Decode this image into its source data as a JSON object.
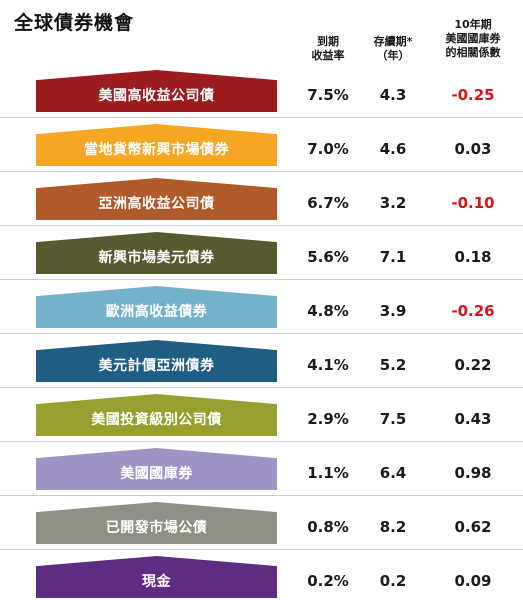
{
  "title": "全球債券機會",
  "headers": {
    "yield": [
      "到期",
      "收益率"
    ],
    "duration": [
      "存續期*",
      "（年）"
    ],
    "correlation": [
      "10年期",
      "美國國庫券",
      "的相關係數"
    ]
  },
  "chart_data": {
    "type": "table",
    "title": "全球債券機會",
    "columns": [
      "到期收益率",
      "存續期*（年）",
      "10年期美國國庫券的相關係數"
    ],
    "rows": [
      {
        "name": "美國高收益公司債",
        "yield": "7.5%",
        "duration": "4.3",
        "correlation": "-0.25",
        "color": "#9b1b1f"
      },
      {
        "name": "當地貨幣新興市場債券",
        "yield": "7.0%",
        "duration": "4.6",
        "correlation": "0.03",
        "color": "#f5a623"
      },
      {
        "name": "亞洲高收益公司債",
        "yield": "6.7%",
        "duration": "3.2",
        "correlation": "-0.10",
        "color": "#b0592b"
      },
      {
        "name": "新興市場美元債券",
        "yield": "5.6%",
        "duration": "7.1",
        "correlation": "0.18",
        "color": "#58592f"
      },
      {
        "name": "歐洲高收益債券",
        "yield": "4.8%",
        "duration": "3.9",
        "correlation": "-0.26",
        "color": "#74b2c9"
      },
      {
        "name": "美元計價亞洲債券",
        "yield": "4.1%",
        "duration": "5.2",
        "correlation": "0.22",
        "color": "#1f5d82"
      },
      {
        "name": "美國投資級別公司債",
        "yield": "2.9%",
        "duration": "7.5",
        "correlation": "0.43",
        "color": "#97a02e"
      },
      {
        "name": "美國國庫券",
        "yield": "1.1%",
        "duration": "6.4",
        "correlation": "0.98",
        "color": "#9f93c6"
      },
      {
        "name": "已開發市場公債",
        "yield": "0.8%",
        "duration": "8.2",
        "correlation": "0.62",
        "color": "#8f8f85"
      },
      {
        "name": "現金",
        "yield": "0.2%",
        "duration": "0.2",
        "correlation": "0.09",
        "color": "#5e2d82"
      }
    ]
  }
}
